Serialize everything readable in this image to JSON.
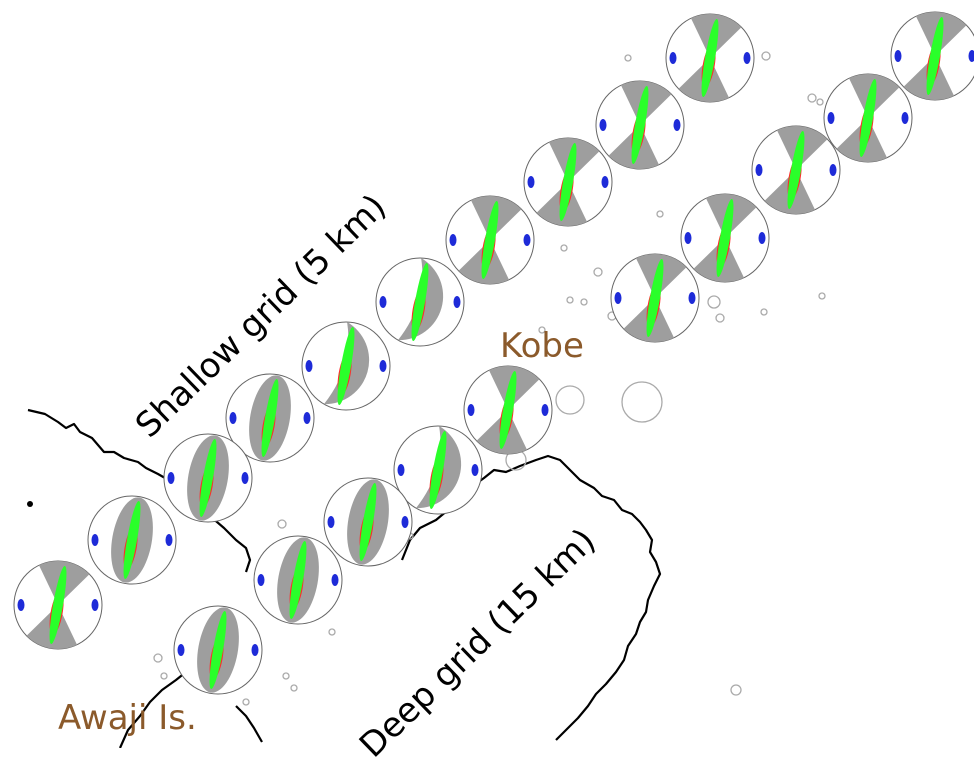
{
  "labels": {
    "shallow_grid": "Shallow grid (5 km)",
    "deep_grid": "Deep grid (15 km)",
    "kobe": "Kobe",
    "awaji": "Awaji Is."
  },
  "colors": {
    "place_label": "#8b5a2b",
    "coastline": "#000000",
    "grid_label": "#000000",
    "compressional": "#9e9e9e",
    "p_axis": "#ff2a2a",
    "t_axis": "#2aff2a",
    "b_axis": "#1e2bd8",
    "outline": "#666666"
  },
  "icons": {
    "focal_mechanism": "beachball-icon",
    "epicenter": "circle-icon"
  }
}
